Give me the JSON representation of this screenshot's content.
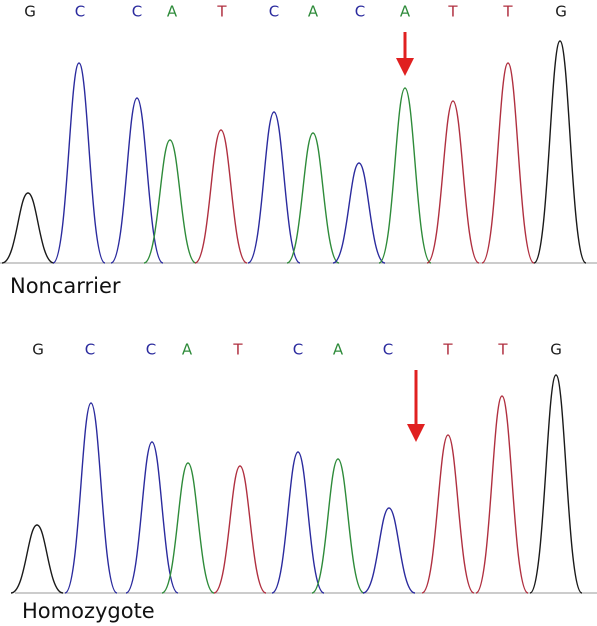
{
  "colors": {
    "G": "#1a1a1a",
    "C": "#2b2b9e",
    "A": "#2e8b3a",
    "T": "#b03040"
  },
  "panels": [
    {
      "label": "Noncarrier",
      "bases": [
        {
          "base": "G",
          "height": 70
        },
        {
          "base": "C",
          "height": 200
        },
        {
          "base": "C",
          "height": 165
        },
        {
          "base": "A",
          "height": 123
        },
        {
          "base": "T",
          "height": 133
        },
        {
          "base": "C",
          "height": 151
        },
        {
          "base": "A",
          "height": 130
        },
        {
          "base": "C",
          "height": 100
        },
        {
          "base": "A",
          "height": 175
        },
        {
          "base": "T",
          "height": 162
        },
        {
          "base": "T",
          "height": 200
        },
        {
          "base": "G",
          "height": 222
        }
      ]
    },
    {
      "label": "Homozygote",
      "bases": [
        {
          "base": "G",
          "height": 68
        },
        {
          "base": "C",
          "height": 190
        },
        {
          "base": "C",
          "height": 151
        },
        {
          "base": "A",
          "height": 130
        },
        {
          "base": "T",
          "height": 127
        },
        {
          "base": "C",
          "height": 141
        },
        {
          "base": "A",
          "height": 134
        },
        {
          "base": "C",
          "height": 85
        },
        {
          "base": "T",
          "height": 158
        },
        {
          "base": "T",
          "height": 197
        },
        {
          "base": "G",
          "height": 218
        }
      ]
    }
  ]
}
